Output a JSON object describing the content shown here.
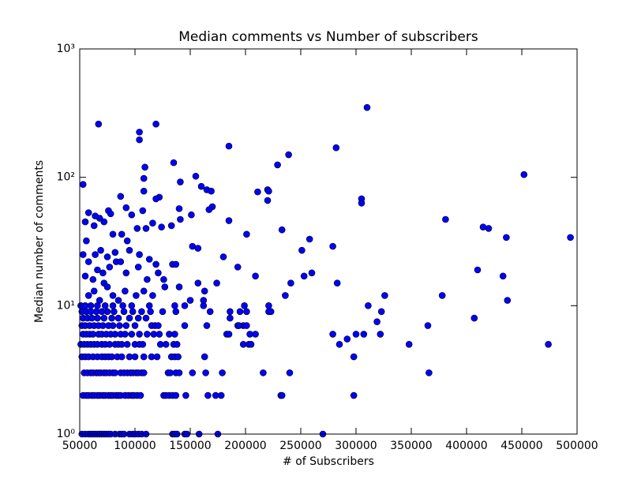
{
  "chart_data": {
    "type": "scatter",
    "title": "Median comments vs Number of subscribers",
    "xlabel": "# of Subscribers",
    "ylabel": "Median number of comments",
    "yscale": "log",
    "color": "#0000ff",
    "edgecolor": "#000000",
    "xlim": [
      50000,
      500000
    ],
    "ylim": [
      1,
      1000
    ],
    "xticks": [
      50000,
      100000,
      150000,
      200000,
      250000,
      300000,
      350000,
      400000,
      450000,
      500000
    ],
    "yticks": [
      {
        "value": 1,
        "label": "10⁰"
      },
      {
        "value": 10,
        "label": "10¹"
      },
      {
        "value": 100,
        "label": "10²"
      },
      {
        "value": 1000,
        "label": "10³"
      }
    ],
    "x": [
      52000,
      55000,
      58000,
      60000,
      62000,
      64000,
      66000,
      68000,
      70000,
      72000,
      74000,
      76000,
      78000,
      82000,
      86000,
      88000,
      90000,
      95000,
      98000,
      100000,
      103000,
      106000,
      110000,
      134000,
      136000,
      138000,
      145000,
      147000,
      158000,
      175000,
      53000,
      56000,
      58000,
      61000,
      63000,
      66000,
      68000,
      71000,
      73000,
      76000,
      78000,
      80000,
      83000,
      85000,
      87000,
      91000,
      94000,
      97000,
      99000,
      102000,
      105000,
      126000,
      128000,
      131000,
      134000,
      137000,
      146000,
      166000,
      173000,
      178000,
      54000,
      57000,
      60000,
      62000,
      65000,
      67000,
      69000,
      72000,
      74000,
      77000,
      80000,
      82000,
      87000,
      90000,
      93000,
      96000,
      98000,
      101000,
      103000,
      106000,
      108000,
      130000,
      132000,
      137000,
      140000,
      152000,
      164000,
      179000,
      52000,
      55000,
      58000,
      62000,
      66000,
      70000,
      73000,
      76000,
      79000,
      84000,
      88000,
      95000,
      100000,
      108000,
      115000,
      120000,
      133000,
      136000,
      139000,
      163000,
      51000,
      54000,
      57000,
      60000,
      63000,
      66000,
      70000,
      73000,
      77000,
      82000,
      85000,
      88000,
      93000,
      100000,
      104000,
      107000,
      123000,
      128000,
      135000,
      138000,
      198000,
      203000,
      53000,
      56000,
      59000,
      62000,
      67000,
      70000,
      74000,
      78000,
      82000,
      87000,
      91000,
      97000,
      104000,
      111000,
      117000,
      122000,
      131000,
      136000,
      183000,
      204000,
      52000,
      55000,
      59000,
      63000,
      67000,
      71000,
      76000,
      80000,
      86000,
      92000,
      100000,
      115000,
      118000,
      121000,
      145000,
      165000,
      193000,
      198000,
      53000,
      57000,
      61000,
      66000,
      72000,
      79000,
      85000,
      95000,
      103000,
      110000,
      186000,
      52000,
      56000,
      60000,
      65000,
      70000,
      75000,
      81000,
      90000,
      98000,
      106000,
      114000,
      125000,
      137000,
      168000,
      186000,
      195000,
      51000,
      55000,
      60000,
      66000,
      73000,
      80000,
      89000,
      97000,
      113000,
      136000,
      145000,
      162000,
      199000,
      58000,
      63000,
      68000,
      72000,
      75000,
      80000,
      85000,
      91000,
      101000,
      108000,
      116000,
      127000,
      140000,
      150000,
      55000,
      62000,
      66000,
      71000,
      77000,
      83000,
      92000,
      103000,
      111000,
      121000,
      126000,
      134000,
      157000,
      53000,
      58000,
      64000,
      69000,
      75000,
      82000,
      87000,
      95000,
      104000,
      113000,
      119000,
      137000,
      152000,
      56000,
      63000,
      68000,
      72000,
      76000,
      80000,
      88000,
      93000,
      97000,
      102000,
      110000,
      116000,
      124000,
      133000,
      141000,
      151000,
      157000,
      55000,
      58000,
      64000,
      92000,
      78000,
      107000,
      310000,
      67000,
      119000,
      104000,
      104000,
      185000,
      282000,
      239000,
      229000,
      135000,
      452000,
      155000,
      53000,
      109000,
      108000,
      108000,
      160000,
      165000,
      169000,
      211000,
      220000,
      221000,
      305000,
      305000,
      220000,
      170000,
      167000,
      140000,
      87000,
      122000,
      119000,
      141000,
      381000,
      185000,
      415000,
      420000,
      436000,
      494000,
      258000,
      201000,
      279000,
      251000,
      233000,
      180000,
      433000,
      410000,
      260000,
      253000,
      193000,
      209000,
      283000,
      241000,
      236000,
      326000,
      378000,
      437000,
      311000,
      323000,
      319000,
      407000,
      365000,
      279000,
      300000,
      307000,
      322000,
      292000,
      285000,
      348000,
      474000,
      298000,
      366000,
      240000,
      216000,
      232000,
      233000,
      298000,
      270000,
      221000,
      221000,
      201000,
      201000,
      223000,
      205000,
      209000,
      174000,
      162000,
      163000,
      185000,
      194000
    ],
    "values": [
      1,
      1,
      1,
      1,
      1,
      1,
      1,
      1,
      1,
      1,
      1,
      1,
      1,
      1,
      1,
      1,
      1,
      1,
      1,
      1,
      1,
      1,
      1,
      1,
      1,
      1,
      1,
      1,
      1,
      1,
      2,
      2,
      2,
      2,
      2,
      2,
      2,
      2,
      2,
      2,
      2,
      2,
      2,
      2,
      2,
      2,
      2,
      2,
      2,
      2,
      2,
      2,
      2,
      2,
      2,
      2,
      2,
      2,
      2,
      2,
      3,
      3,
      3,
      3,
      3,
      3,
      3,
      3,
      3,
      3,
      3,
      3,
      3,
      3,
      3,
      3,
      3,
      3,
      3,
      3,
      3,
      3,
      3,
      3,
      3,
      3,
      3,
      3,
      4,
      4,
      4,
      4,
      4,
      4,
      4,
      4,
      4,
      4,
      4,
      4,
      4,
      4,
      4,
      4,
      4,
      4,
      4,
      4,
      5,
      5,
      5,
      5,
      5,
      5,
      5,
      5,
      5,
      5,
      5,
      5,
      5,
      5,
      5,
      5,
      5,
      5,
      5,
      5,
      5,
      5,
      6,
      6,
      6,
      6,
      6,
      6,
      6,
      6,
      6,
      6,
      6,
      6,
      6,
      6,
      6,
      6,
      6,
      6,
      6,
      6,
      7,
      7,
      7,
      7,
      7,
      7,
      7,
      7,
      7,
      7,
      7,
      7,
      7,
      7,
      7,
      7,
      7,
      7,
      8,
      8,
      8,
      8,
      8,
      8,
      8,
      8,
      8,
      8,
      8,
      9,
      9,
      9,
      9,
      9,
      9,
      9,
      9,
      9,
      9,
      9,
      9,
      9,
      9,
      9,
      9,
      10,
      10,
      10,
      10,
      10,
      10,
      10,
      10,
      10,
      10,
      10,
      10,
      10,
      12,
      13,
      11,
      15,
      14,
      12,
      11,
      13,
      12,
      13,
      12,
      14,
      14,
      11,
      17,
      16,
      19,
      18,
      20,
      22,
      18,
      20,
      16,
      18,
      16,
      21,
      15,
      25,
      22,
      25,
      27,
      24,
      26,
      22,
      27,
      25,
      23,
      21,
      21,
      29,
      32,
      42,
      48,
      45,
      55,
      36,
      36,
      32,
      51,
      40,
      40,
      44,
      41,
      42,
      47,
      51,
      28,
      45,
      53,
      50,
      58,
      52,
      55,
      350,
      260,
      260,
      225,
      196,
      175,
      170,
      150,
      125,
      130,
      105,
      102,
      88,
      120,
      98,
      78,
      85,
      80,
      78,
      77,
      80,
      78,
      68,
      63,
      66,
      59,
      56,
      57,
      71,
      70,
      68,
      92,
      47,
      46,
      41,
      40,
      34,
      34,
      33,
      36,
      29,
      27,
      39,
      24,
      17,
      19,
      18,
      17,
      20,
      17,
      15,
      15,
      12,
      12,
      12,
      11,
      10,
      9,
      7.5,
      8,
      7,
      6,
      6,
      6,
      6,
      5.5,
      5,
      5,
      5,
      4,
      3,
      3,
      3,
      2,
      2,
      2,
      1,
      10,
      9,
      9,
      7,
      9,
      5,
      6,
      15,
      11,
      13,
      6,
      7
    ]
  }
}
